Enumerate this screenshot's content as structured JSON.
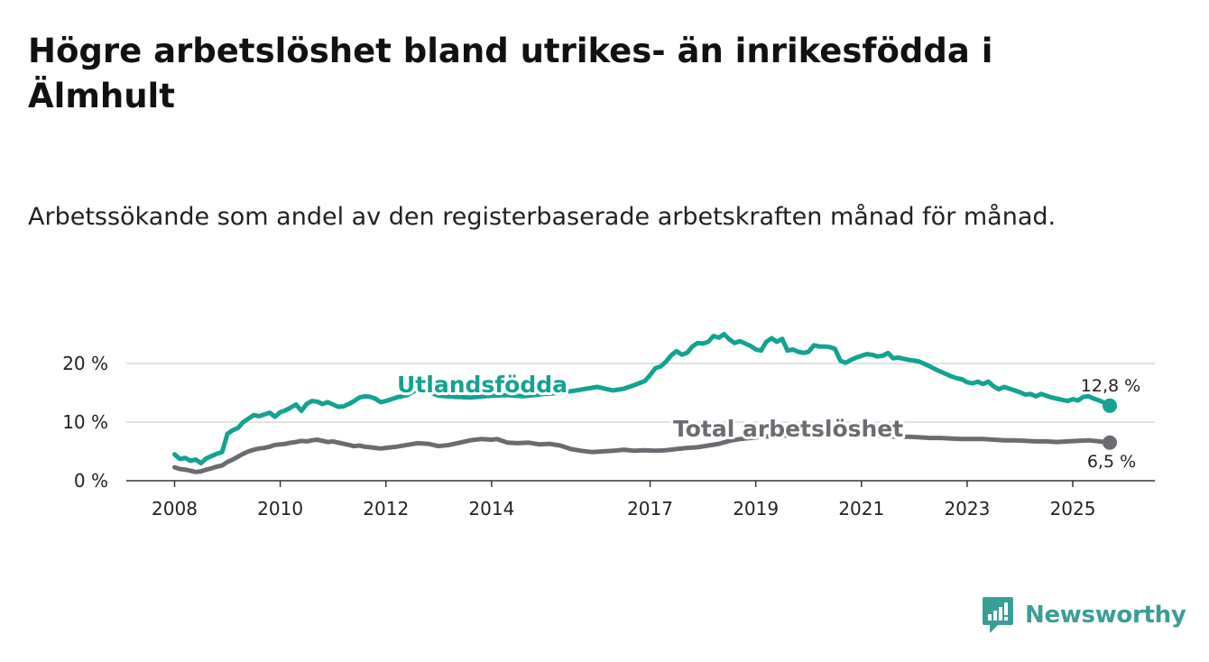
{
  "header": {
    "title": "Högre arbetslöshet bland utrikes- än inrikesfödda i Älmhult",
    "subtitle": "Arbetssökande som andel av den registerbaserade arbetskraften månad för månad."
  },
  "brand": {
    "name": "Newsworthy",
    "color": "#3a9e96",
    "icon": "newsworthy-logo-icon"
  },
  "chart_data": {
    "type": "line",
    "title": "Högre arbetslöshet bland utrikes- än inrikesfödda i Älmhult",
    "subtitle": "Arbetssökande som andel av den registerbaserade arbetskraften månad för månad.",
    "xlabel": "",
    "ylabel": "",
    "xlim": [
      2007.95,
      2025.9
    ],
    "ylim": [
      0,
      25
    ],
    "y_ticks": [
      0,
      10,
      20
    ],
    "y_tick_labels": [
      "0 %",
      "10 %",
      "20 %"
    ],
    "x_ticks": [
      2008,
      2010,
      2012,
      2014,
      2017,
      2019,
      2021,
      2023,
      2025
    ],
    "x_tick_labels": [
      "2008",
      "2010",
      "2012",
      "2014",
      "2017",
      "2019",
      "2021",
      "2023",
      "2025"
    ],
    "grid": true,
    "legend": "inline labels",
    "series": [
      {
        "name": "Utlandsfödda",
        "label": "Utlandsfödda",
        "color": "#12a392",
        "end_label": "12,8 %",
        "points": [
          [
            2008.0,
            4.5
          ],
          [
            2008.1,
            3.7
          ],
          [
            2008.2,
            3.9
          ],
          [
            2008.3,
            3.4
          ],
          [
            2008.4,
            3.6
          ],
          [
            2008.5,
            3.0
          ],
          [
            2008.6,
            3.8
          ],
          [
            2008.7,
            4.2
          ],
          [
            2008.8,
            4.6
          ],
          [
            2008.9,
            4.9
          ],
          [
            2009.0,
            8.0
          ],
          [
            2009.1,
            8.6
          ],
          [
            2009.2,
            9.0
          ],
          [
            2009.3,
            10.0
          ],
          [
            2009.4,
            10.6
          ],
          [
            2009.5,
            11.2
          ],
          [
            2009.6,
            11.0
          ],
          [
            2009.7,
            11.3
          ],
          [
            2009.8,
            11.6
          ],
          [
            2009.9,
            10.9
          ],
          [
            2010.0,
            11.7
          ],
          [
            2010.1,
            12.0
          ],
          [
            2010.2,
            12.5
          ],
          [
            2010.3,
            13.0
          ],
          [
            2010.4,
            11.9
          ],
          [
            2010.5,
            13.1
          ],
          [
            2010.6,
            13.6
          ],
          [
            2010.7,
            13.5
          ],
          [
            2010.8,
            13.1
          ],
          [
            2010.9,
            13.4
          ],
          [
            2011.0,
            13.0
          ],
          [
            2011.1,
            12.6
          ],
          [
            2011.2,
            12.7
          ],
          [
            2011.3,
            13.1
          ],
          [
            2011.4,
            13.6
          ],
          [
            2011.5,
            14.2
          ],
          [
            2011.6,
            14.4
          ],
          [
            2011.7,
            14.3
          ],
          [
            2011.8,
            14.0
          ],
          [
            2011.9,
            13.4
          ],
          [
            2012.0,
            13.6
          ],
          [
            2012.2,
            14.2
          ],
          [
            2012.4,
            14.6
          ],
          [
            2012.6,
            15.6
          ],
          [
            2012.8,
            15.2
          ],
          [
            2013.0,
            14.5
          ],
          [
            2013.3,
            14.3
          ],
          [
            2013.6,
            14.2
          ],
          [
            2014.0,
            14.5
          ],
          [
            2014.3,
            14.6
          ],
          [
            2014.6,
            14.4
          ],
          [
            2015.0,
            14.8
          ],
          [
            2015.3,
            15.0
          ],
          [
            2015.6,
            15.4
          ],
          [
            2016.0,
            16.0
          ],
          [
            2016.1,
            15.8
          ],
          [
            2016.3,
            15.4
          ],
          [
            2016.5,
            15.7
          ],
          [
            2016.7,
            16.3
          ],
          [
            2016.9,
            17.0
          ],
          [
            2017.0,
            18.0
          ],
          [
            2017.1,
            19.2
          ],
          [
            2017.2,
            19.5
          ],
          [
            2017.3,
            20.3
          ],
          [
            2017.4,
            21.4
          ],
          [
            2017.5,
            22.1
          ],
          [
            2017.6,
            21.5
          ],
          [
            2017.7,
            21.8
          ],
          [
            2017.8,
            22.9
          ],
          [
            2017.9,
            23.5
          ],
          [
            2018.0,
            23.4
          ],
          [
            2018.1,
            23.7
          ],
          [
            2018.2,
            24.7
          ],
          [
            2018.3,
            24.4
          ],
          [
            2018.4,
            25.0
          ],
          [
            2018.5,
            24.1
          ],
          [
            2018.6,
            23.5
          ],
          [
            2018.7,
            23.8
          ],
          [
            2018.8,
            23.4
          ],
          [
            2018.9,
            23.0
          ],
          [
            2019.0,
            22.4
          ],
          [
            2019.1,
            22.2
          ],
          [
            2019.2,
            23.7
          ],
          [
            2019.3,
            24.3
          ],
          [
            2019.4,
            23.7
          ],
          [
            2019.5,
            24.2
          ],
          [
            2019.6,
            22.2
          ],
          [
            2019.7,
            22.4
          ],
          [
            2019.8,
            22.0
          ],
          [
            2019.9,
            21.8
          ],
          [
            2020.0,
            22.0
          ],
          [
            2020.1,
            23.1
          ],
          [
            2020.2,
            22.9
          ],
          [
            2020.3,
            22.9
          ],
          [
            2020.4,
            22.8
          ],
          [
            2020.5,
            22.5
          ],
          [
            2020.6,
            20.5
          ],
          [
            2020.7,
            20.1
          ],
          [
            2020.8,
            20.6
          ],
          [
            2020.9,
            21.0
          ],
          [
            2021.0,
            21.3
          ],
          [
            2021.1,
            21.6
          ],
          [
            2021.2,
            21.5
          ],
          [
            2021.3,
            21.2
          ],
          [
            2021.4,
            21.3
          ],
          [
            2021.5,
            21.8
          ],
          [
            2021.6,
            20.9
          ],
          [
            2021.7,
            21.0
          ],
          [
            2021.8,
            20.8
          ],
          [
            2021.9,
            20.6
          ],
          [
            2022.0,
            20.5
          ],
          [
            2022.1,
            20.3
          ],
          [
            2022.2,
            19.9
          ],
          [
            2022.3,
            19.5
          ],
          [
            2022.4,
            19.0
          ],
          [
            2022.5,
            18.6
          ],
          [
            2022.6,
            18.2
          ],
          [
            2022.7,
            17.8
          ],
          [
            2022.8,
            17.5
          ],
          [
            2022.9,
            17.3
          ],
          [
            2023.0,
            16.8
          ],
          [
            2023.1,
            16.6
          ],
          [
            2023.2,
            16.9
          ],
          [
            2023.3,
            16.5
          ],
          [
            2023.4,
            16.9
          ],
          [
            2023.5,
            16.1
          ],
          [
            2023.6,
            15.6
          ],
          [
            2023.7,
            16.0
          ],
          [
            2023.8,
            15.7
          ],
          [
            2023.9,
            15.4
          ],
          [
            2024.0,
            15.1
          ],
          [
            2024.1,
            14.7
          ],
          [
            2024.2,
            14.8
          ],
          [
            2024.3,
            14.4
          ],
          [
            2024.4,
            14.8
          ],
          [
            2024.5,
            14.5
          ],
          [
            2024.6,
            14.2
          ],
          [
            2024.7,
            14.0
          ],
          [
            2024.8,
            13.8
          ],
          [
            2024.9,
            13.6
          ],
          [
            2025.0,
            13.9
          ],
          [
            2025.1,
            13.7
          ],
          [
            2025.2,
            14.3
          ],
          [
            2025.3,
            14.4
          ],
          [
            2025.4,
            14.0
          ],
          [
            2025.5,
            13.7
          ],
          [
            2025.6,
            13.3
          ],
          [
            2025.7,
            12.8
          ]
        ]
      },
      {
        "name": "Total arbetslöshet",
        "label": "Total arbetslöshet",
        "color": "#6d6b72",
        "end_label": "6,5 %",
        "points": [
          [
            2008.0,
            2.3
          ],
          [
            2008.1,
            2.0
          ],
          [
            2008.2,
            1.9
          ],
          [
            2008.3,
            1.7
          ],
          [
            2008.4,
            1.5
          ],
          [
            2008.5,
            1.6
          ],
          [
            2008.6,
            1.9
          ],
          [
            2008.7,
            2.1
          ],
          [
            2008.8,
            2.4
          ],
          [
            2008.9,
            2.6
          ],
          [
            2009.0,
            3.2
          ],
          [
            2009.1,
            3.6
          ],
          [
            2009.2,
            4.1
          ],
          [
            2009.3,
            4.6
          ],
          [
            2009.4,
            5.0
          ],
          [
            2009.5,
            5.3
          ],
          [
            2009.6,
            5.5
          ],
          [
            2009.7,
            5.6
          ],
          [
            2009.8,
            5.8
          ],
          [
            2009.9,
            6.1
          ],
          [
            2010.0,
            6.2
          ],
          [
            2010.1,
            6.3
          ],
          [
            2010.2,
            6.5
          ],
          [
            2010.3,
            6.6
          ],
          [
            2010.4,
            6.8
          ],
          [
            2010.5,
            6.7
          ],
          [
            2010.6,
            6.9
          ],
          [
            2010.7,
            7.0
          ],
          [
            2010.8,
            6.8
          ],
          [
            2010.9,
            6.6
          ],
          [
            2011.0,
            6.7
          ],
          [
            2011.1,
            6.5
          ],
          [
            2011.2,
            6.3
          ],
          [
            2011.3,
            6.1
          ],
          [
            2011.4,
            5.9
          ],
          [
            2011.5,
            6.0
          ],
          [
            2011.6,
            5.8
          ],
          [
            2011.7,
            5.7
          ],
          [
            2011.8,
            5.6
          ],
          [
            2011.9,
            5.5
          ],
          [
            2012.0,
            5.6
          ],
          [
            2012.2,
            5.8
          ],
          [
            2012.4,
            6.1
          ],
          [
            2012.6,
            6.4
          ],
          [
            2012.8,
            6.3
          ],
          [
            2013.0,
            5.9
          ],
          [
            2013.2,
            6.1
          ],
          [
            2013.4,
            6.5
          ],
          [
            2013.6,
            6.9
          ],
          [
            2013.8,
            7.1
          ],
          [
            2014.0,
            7.0
          ],
          [
            2014.1,
            7.1
          ],
          [
            2014.3,
            6.5
          ],
          [
            2014.5,
            6.4
          ],
          [
            2014.7,
            6.5
          ],
          [
            2014.9,
            6.2
          ],
          [
            2015.1,
            6.3
          ],
          [
            2015.3,
            6.0
          ],
          [
            2015.5,
            5.4
          ],
          [
            2015.7,
            5.1
          ],
          [
            2015.9,
            4.9
          ],
          [
            2016.1,
            5.0
          ],
          [
            2016.3,
            5.1
          ],
          [
            2016.5,
            5.3
          ],
          [
            2016.7,
            5.1
          ],
          [
            2016.9,
            5.2
          ],
          [
            2017.1,
            5.1
          ],
          [
            2017.3,
            5.2
          ],
          [
            2017.5,
            5.4
          ],
          [
            2017.7,
            5.6
          ],
          [
            2017.9,
            5.7
          ],
          [
            2018.1,
            6.0
          ],
          [
            2018.3,
            6.3
          ],
          [
            2018.5,
            6.8
          ],
          [
            2018.7,
            7.1
          ],
          [
            2018.9,
            7.3
          ],
          [
            2019.1,
            7.5
          ],
          [
            2019.3,
            7.6
          ],
          [
            2019.5,
            7.7
          ],
          [
            2019.7,
            7.7
          ],
          [
            2019.9,
            7.8
          ],
          [
            2020.1,
            8.0
          ],
          [
            2020.3,
            8.2
          ],
          [
            2020.5,
            8.1
          ],
          [
            2020.7,
            8.0
          ],
          [
            2020.9,
            7.9
          ],
          [
            2021.1,
            7.8
          ],
          [
            2021.3,
            7.7
          ],
          [
            2021.5,
            7.6
          ],
          [
            2021.7,
            7.5
          ],
          [
            2021.9,
            7.5
          ],
          [
            2022.1,
            7.4
          ],
          [
            2022.3,
            7.3
          ],
          [
            2022.5,
            7.3
          ],
          [
            2022.7,
            7.2
          ],
          [
            2022.9,
            7.1
          ],
          [
            2023.1,
            7.1
          ],
          [
            2023.3,
            7.1
          ],
          [
            2023.5,
            7.0
          ],
          [
            2023.7,
            6.9
          ],
          [
            2023.9,
            6.9
          ],
          [
            2024.1,
            6.8
          ],
          [
            2024.3,
            6.7
          ],
          [
            2024.5,
            6.7
          ],
          [
            2024.7,
            6.6
          ],
          [
            2024.9,
            6.7
          ],
          [
            2025.1,
            6.8
          ],
          [
            2025.3,
            6.9
          ],
          [
            2025.5,
            6.7
          ],
          [
            2025.7,
            6.5
          ]
        ]
      }
    ]
  }
}
